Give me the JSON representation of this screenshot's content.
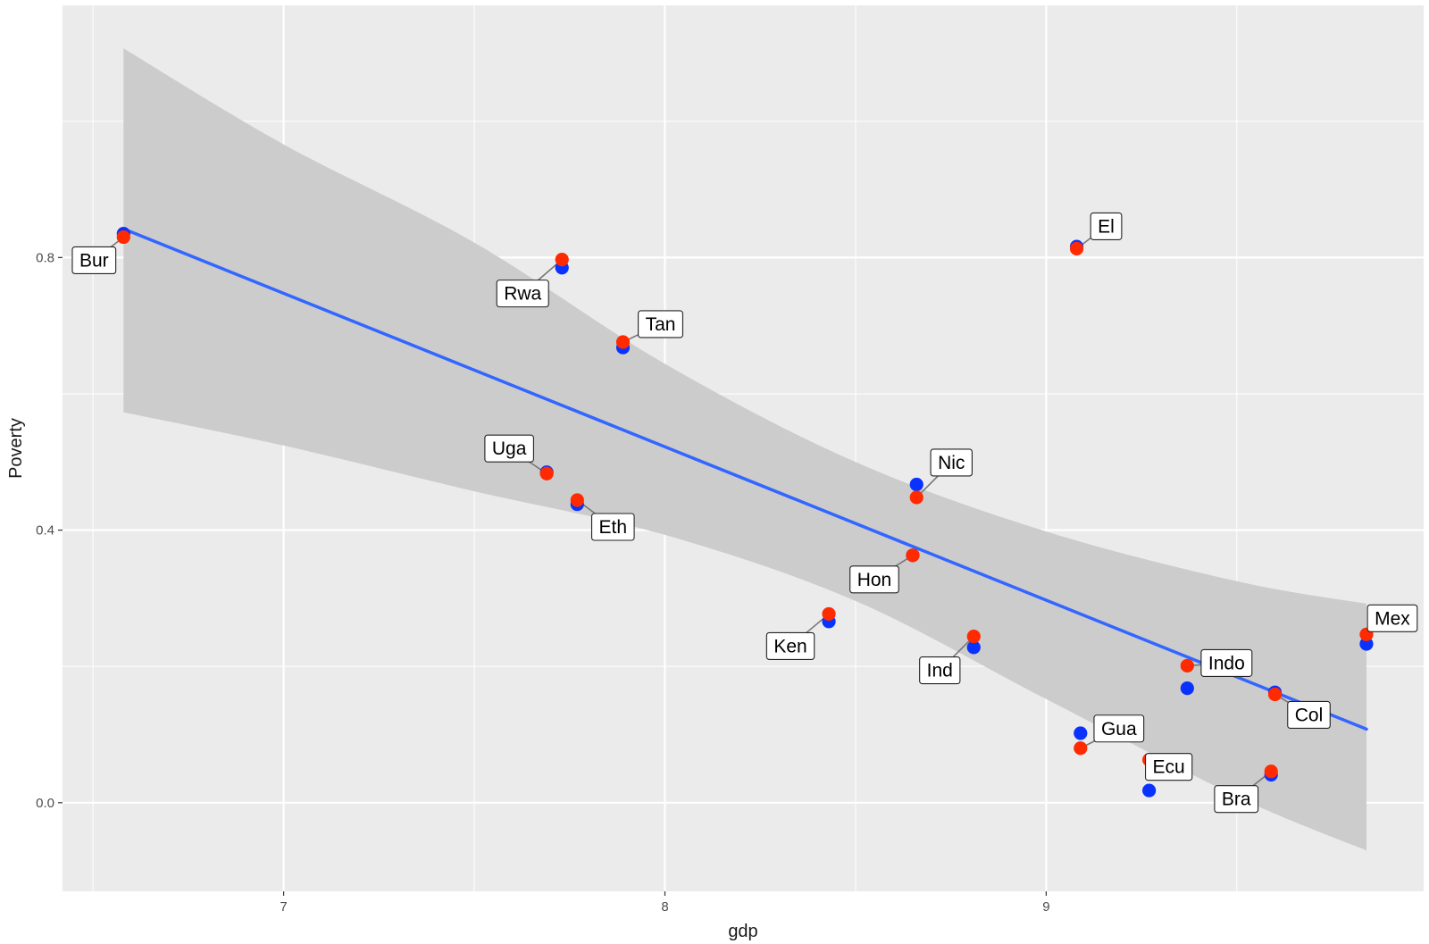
{
  "chart_data": {
    "type": "scatter",
    "xlabel": "gdp",
    "ylabel": "Poverty",
    "xlim": [
      6.42,
      9.99
    ],
    "ylim": [
      -0.13,
      1.17
    ],
    "x_ticks": [
      7,
      8,
      9
    ],
    "y_ticks": [
      0.0,
      0.4,
      0.8
    ],
    "x_tick_labels": [
      "7",
      "8",
      "9"
    ],
    "y_tick_labels": [
      "0.0",
      "0.4",
      "0.8"
    ],
    "grid": true,
    "colors": {
      "panel": "#ebebeb",
      "grid": "#ffffff",
      "series_a": "#0a32ff",
      "series_b": "#ff2a00",
      "fit_line": "#3366ff",
      "band": "#cccccc",
      "connector": "#777777"
    },
    "points": [
      {
        "label": "Bur",
        "x": 6.58,
        "y_a": 0.835,
        "y_b": 0.83
      },
      {
        "label": "Rwa",
        "x": 7.73,
        "y_a": 0.785,
        "y_b": 0.797
      },
      {
        "label": "Tan",
        "x": 7.89,
        "y_a": 0.668,
        "y_b": 0.676
      },
      {
        "label": "Uga",
        "x": 7.69,
        "y_a": 0.485,
        "y_b": 0.483
      },
      {
        "label": "Eth",
        "x": 7.77,
        "y_a": 0.438,
        "y_b": 0.444
      },
      {
        "label": "Nic",
        "x": 8.66,
        "y_a": 0.467,
        "y_b": 0.448
      },
      {
        "label": "Hon",
        "x": 8.65,
        "y_a": 0.363,
        "y_b": 0.363
      },
      {
        "label": "Ken",
        "x": 8.43,
        "y_a": 0.266,
        "y_b": 0.277
      },
      {
        "label": "Ind",
        "x": 8.81,
        "y_a": 0.228,
        "y_b": 0.244
      },
      {
        "label": "El",
        "x": 9.08,
        "y_a": 0.816,
        "y_b": 0.813
      },
      {
        "label": "Gua",
        "x": 9.09,
        "y_a": 0.102,
        "y_b": 0.08
      },
      {
        "label": "Ecu",
        "x": 9.27,
        "y_a": 0.018,
        "y_b": 0.063
      },
      {
        "label": "Indo",
        "x": 9.37,
        "y_a": 0.168,
        "y_b": 0.201
      },
      {
        "label": "Col",
        "x": 9.6,
        "y_a": 0.162,
        "y_b": 0.159
      },
      {
        "label": "Bra",
        "x": 9.59,
        "y_a": 0.041,
        "y_b": 0.046
      },
      {
        "label": "Mex",
        "x": 9.84,
        "y_a": 0.233,
        "y_b": 0.247
      }
    ],
    "fit_line": [
      {
        "x": 6.58,
        "y": 0.842
      },
      {
        "x": 9.84,
        "y": 0.108
      }
    ],
    "confidence_band": {
      "x": [
        6.58,
        7.0,
        7.5,
        8.0,
        8.5,
        9.0,
        9.5,
        9.84
      ],
      "upper": [
        1.107,
        0.966,
        0.822,
        0.644,
        0.5,
        0.398,
        0.325,
        0.292
      ],
      "lower": [
        0.573,
        0.524,
        0.457,
        0.393,
        0.296,
        0.152,
        0.009,
        -0.07
      ]
    }
  }
}
